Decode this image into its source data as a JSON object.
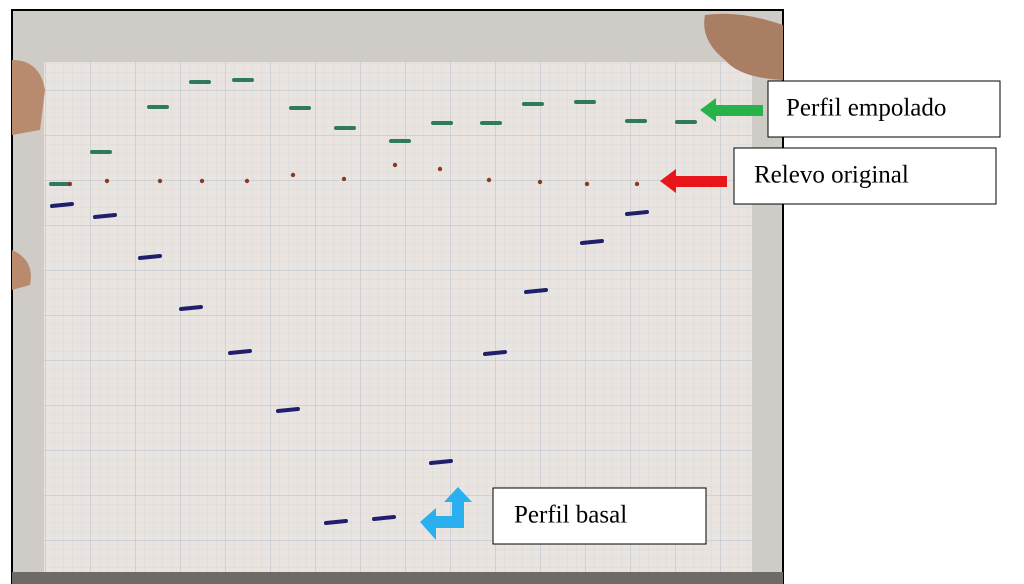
{
  "annotations": [
    "Perfil empolado",
    "Relevo original",
    "Perfil basal"
  ]
}
